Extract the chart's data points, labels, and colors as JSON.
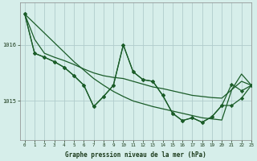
{
  "title": "Graphe pression niveau de la mer (hPa)",
  "background_color": "#d6eeea",
  "grid_color": "#b0cccc",
  "line_color": "#1a5c28",
  "marker_color": "#1a5c28",
  "yticks": [
    1015,
    1016
  ],
  "xticks": [
    0,
    1,
    2,
    3,
    4,
    5,
    6,
    7,
    8,
    9,
    10,
    11,
    12,
    13,
    14,
    15,
    16,
    17,
    18,
    19,
    20,
    21,
    22,
    23
  ],
  "xlim": [
    -0.5,
    23
  ],
  "ylim": [
    1014.3,
    1016.75
  ],
  "series": {
    "line1_straight": [
      1016.55,
      1016.38,
      1016.21,
      1016.04,
      1015.87,
      1015.7,
      1015.55,
      1015.4,
      1015.28,
      1015.17,
      1015.08,
      1015.0,
      1014.95,
      1014.9,
      1014.86,
      1014.82,
      1014.78,
      1014.74,
      1014.7,
      1014.68,
      1014.66,
      1015.2,
      1015.48,
      1015.28
    ],
    "line2_upper_smooth": [
      1016.55,
      1016.1,
      1015.85,
      1015.78,
      1015.72,
      1015.65,
      1015.57,
      1015.5,
      1015.45,
      1015.42,
      1015.4,
      1015.35,
      1015.3,
      1015.25,
      1015.22,
      1015.18,
      1015.14,
      1015.1,
      1015.08,
      1015.06,
      1015.05,
      1015.2,
      1015.35,
      1015.28
    ],
    "line3_zigzag": [
      1016.55,
      1015.85,
      1015.78,
      1015.7,
      1015.6,
      1015.45,
      1015.28,
      1014.9,
      1015.08,
      1015.28,
      1016.0,
      1015.52,
      1015.38,
      1015.35,
      1015.1,
      1014.78,
      1014.65,
      1014.7,
      1014.62,
      1014.72,
      1014.92,
      1015.3,
      1015.18,
      1015.28
    ],
    "line4_zigzag2": [
      1016.55,
      1015.85,
      1015.78,
      1015.7,
      1015.6,
      1015.45,
      1015.28,
      1014.9,
      1015.08,
      1015.28,
      1016.0,
      1015.52,
      1015.38,
      1015.35,
      1015.1,
      1014.78,
      1014.65,
      1014.7,
      1014.62,
      1014.72,
      1014.92,
      1014.92,
      1015.05,
      1015.28
    ]
  }
}
